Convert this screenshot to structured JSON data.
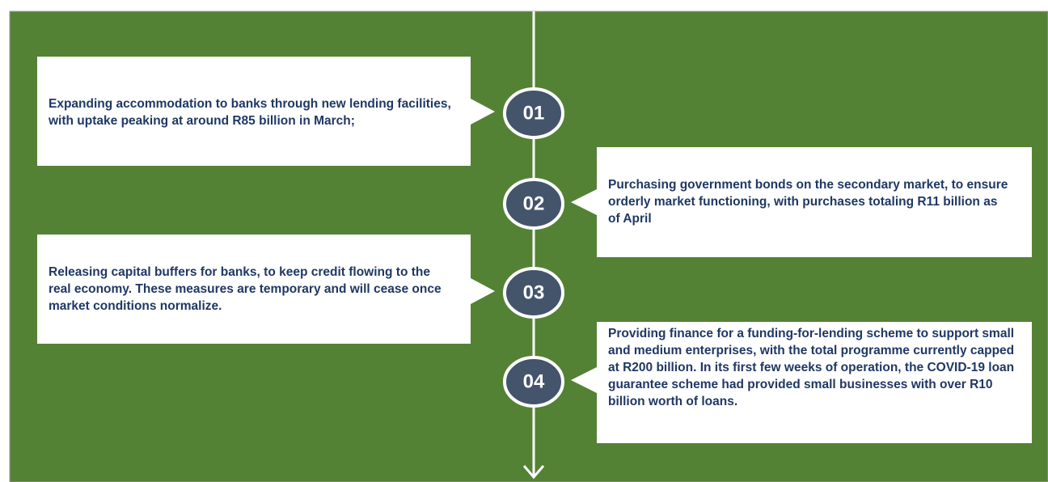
{
  "items": [
    {
      "number": "01",
      "text": "Expanding accommodation to banks through new lending facilities, with uptake peaking at around R85 billion in March;"
    },
    {
      "number": "02",
      "text": "Purchasing government bonds on the secondary market, to ensure orderly market functioning, with purchases totaling R11 billion as of April"
    },
    {
      "number": "03",
      "text": "Releasing capital buffers for banks, to keep credit flowing to the real economy. These measures are temporary and will cease once market conditions normalize."
    },
    {
      "number": "04",
      "text": "Providing finance for a funding-for-lending scheme to support small and medium enterprises, with the total programme currently capped at R200 billion. In its first few weeks of operation, the COVID-19 loan guarantee scheme had provided small businesses with over R10 billion worth of loans."
    }
  ]
}
